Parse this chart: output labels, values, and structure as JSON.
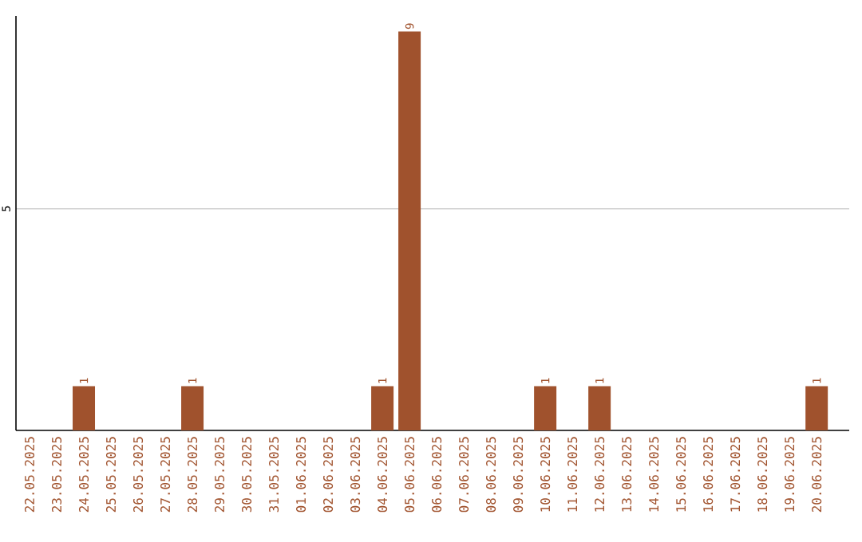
{
  "chart_data": {
    "type": "bar",
    "categories": [
      "22.05.2025",
      "23.05.2025",
      "24.05.2025",
      "25.05.2025",
      "26.05.2025",
      "27.05.2025",
      "28.05.2025",
      "29.05.2025",
      "30.05.2025",
      "31.05.2025",
      "01.06.2025",
      "02.06.2025",
      "03.06.2025",
      "04.06.2025",
      "05.06.2025",
      "06.06.2025",
      "07.06.2025",
      "08.06.2025",
      "09.06.2025",
      "10.06.2025",
      "11.06.2025",
      "12.06.2025",
      "13.06.2025",
      "14.06.2025",
      "15.06.2025",
      "16.06.2025",
      "17.06.2025",
      "18.06.2025",
      "19.06.2025",
      "20.06.2025"
    ],
    "values": [
      0,
      0,
      1,
      0,
      0,
      0,
      1,
      0,
      0,
      0,
      0,
      0,
      0,
      1,
      9,
      0,
      0,
      0,
      0,
      1,
      0,
      1,
      0,
      0,
      0,
      0,
      0,
      0,
      0,
      1
    ],
    "value_labels": [
      null,
      null,
      "1",
      null,
      null,
      null,
      "1",
      null,
      null,
      null,
      null,
      null,
      null,
      "1",
      "9",
      null,
      null,
      null,
      null,
      "1",
      null,
      "1",
      null,
      null,
      null,
      null,
      null,
      null,
      null,
      "1"
    ],
    "color": "#a0522d",
    "ylim": [
      0,
      9.35
    ],
    "yticks": [
      5
    ],
    "grid": "y"
  }
}
